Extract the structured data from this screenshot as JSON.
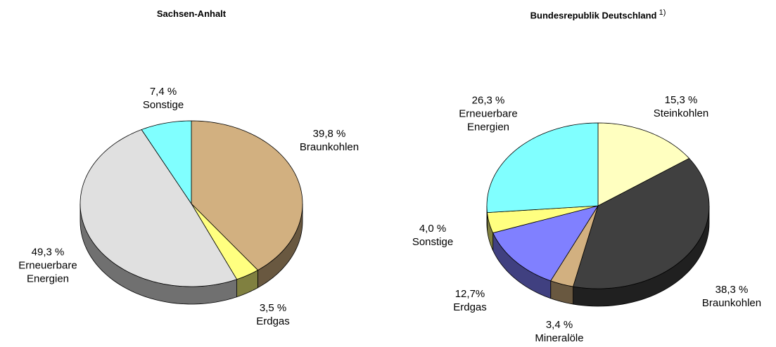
{
  "chart_data": [
    {
      "type": "pie3d",
      "title": "Sachsen-Anhalt",
      "categories": [
        "Braunkohlen",
        "Erdgas",
        "Erneuerbare Energien",
        "Sonstige"
      ],
      "values": [
        39.8,
        3.5,
        49.3,
        7.4
      ],
      "value_labels": [
        "39,8 %",
        "3,5 %",
        "49,3 %",
        "7,4 %"
      ],
      "colors": [
        "#d2b080",
        "#ffff80",
        "#e0e0e0",
        "#80ffff"
      ]
    },
    {
      "type": "pie3d",
      "title": "Bundesrepublik Deutschland",
      "title_note": "1)",
      "categories": [
        "Steinkohlen",
        "Braunkohlen",
        "Mineralöle",
        "Erdgas",
        "Sonstige",
        "Erneuerbare Energien"
      ],
      "values": [
        15.3,
        38.3,
        3.4,
        12.7,
        4.0,
        26.3
      ],
      "value_labels": [
        "15,3 %",
        "38,3 %",
        "3,4 %",
        "12,7%",
        "4,0 %",
        "26,3 %"
      ],
      "colors": [
        "#ffffc0",
        "#404040",
        "#d2b080",
        "#8080ff",
        "#ffff80",
        "#80ffff"
      ]
    }
  ]
}
